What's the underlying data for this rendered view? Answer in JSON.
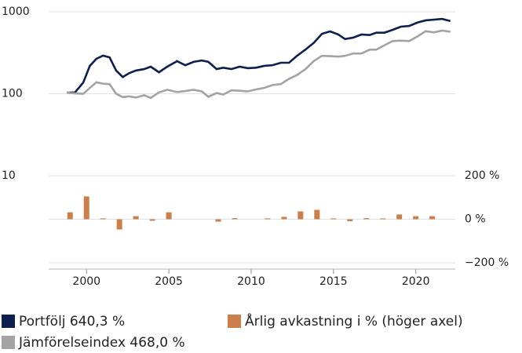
{
  "chart_data": {
    "type": "combo",
    "x": [
      1998.8,
      1999.3,
      1999.8,
      2000.2,
      2000.6,
      2001,
      2001.4,
      2001.8,
      2002.2,
      2002.6,
      2003,
      2003.5,
      2003.9,
      2004.4,
      2004.9,
      2005.5,
      2006,
      2006.5,
      2007,
      2007.4,
      2007.9,
      2008.3,
      2008.8,
      2009.3,
      2009.8,
      2010.3,
      2010.8,
      2011.3,
      2011.8,
      2012.3,
      2012.8,
      2013.3,
      2013.8,
      2014.3,
      2014.8,
      2015.3,
      2015.7,
      2016.2,
      2016.7,
      2017.2,
      2017.6,
      2018.1,
      2018.6,
      2019.1,
      2019.6,
      2020.1,
      2020.6,
      2021.1,
      2021.6,
      2022.1
    ],
    "xlim": [
      1997.7,
      2022.4
    ],
    "xticks": [
      2000,
      2005,
      2010,
      2015,
      2020
    ],
    "ylim": [
      0.87,
      1000
    ],
    "yticks": [
      10,
      100,
      1000
    ],
    "log_y": true,
    "y2lim": [
      -200,
      953
    ],
    "y2ticks": [
      {
        "value": 200,
        "label": "200 %"
      },
      {
        "value": 0,
        "label": "0 %"
      },
      {
        "value": -200,
        "label": "−200 %"
      }
    ],
    "grid": true,
    "series": [
      {
        "name": "Portfölj 640,3 %",
        "color": "#0c1f4e",
        "type": "line",
        "values": [
          103,
          104,
          137,
          219,
          267,
          292,
          278,
          192,
          160,
          179,
          192,
          200,
          214,
          183,
          214,
          250,
          223,
          245,
          255,
          245,
          200,
          208,
          200,
          214,
          205,
          208,
          219,
          223,
          239,
          239,
          292,
          346,
          417,
          538,
          576,
          528,
          465,
          484,
          528,
          520,
          556,
          556,
          603,
          658,
          672,
          738,
          786,
          802,
          818,
          770
        ]
      },
      {
        "name": "Jämförelseindex 468,0 %",
        "color": "#a3a3a3",
        "type": "line",
        "values": [
          103,
          101,
          100,
          118,
          138,
          133,
          131,
          100,
          91,
          93,
          90,
          96,
          89,
          104,
          112,
          105,
          108,
          112,
          107,
          92,
          102,
          98,
          110,
          109,
          107,
          113,
          118,
          128,
          131,
          152,
          170,
          200,
          250,
          290,
          288,
          284,
          290,
          310,
          310,
          345,
          345,
          390,
          440,
          445,
          440,
          500,
          580,
          560,
          590,
          570
        ]
      },
      {
        "name": "Årlig avkastning i % (höger axel)",
        "color": "#cd7f4b",
        "type": "bar",
        "axis": "y2",
        "x": [
          1999,
          2000,
          2001,
          2002,
          2003,
          2004,
          2005,
          2006,
          2007,
          2008,
          2009,
          2010,
          2011,
          2012,
          2013,
          2014,
          2015,
          2016,
          2017,
          2018,
          2019,
          2020,
          2021
        ],
        "values": [
          32,
          105,
          4,
          -47,
          14,
          -7,
          32,
          null,
          null,
          -11,
          5,
          null,
          4,
          11,
          36,
          43,
          4,
          -9,
          5,
          4,
          22,
          14,
          14
        ]
      }
    ]
  }
}
